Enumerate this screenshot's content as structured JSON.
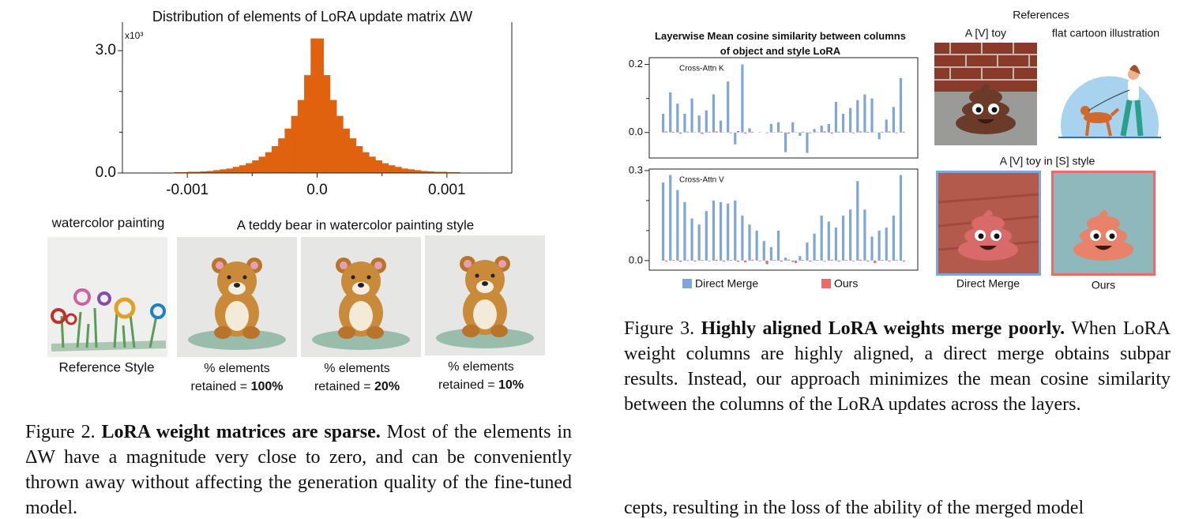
{
  "chart_data": [
    {
      "type": "histogram",
      "title": "Distribution of elements of LoRA update matrix ΔW",
      "y_scale_label": "x10³",
      "bins": [
        -0.0015,
        -0.00145,
        -0.0014,
        -0.00135,
        -0.0013,
        -0.00125,
        -0.0012,
        -0.00115,
        -0.0011,
        -0.00105,
        -0.001,
        -0.00095,
        -0.0009,
        -0.00085,
        -0.0008,
        -0.00075,
        -0.0007,
        -0.00065,
        -0.0006,
        -0.00055,
        -0.0005,
        -0.00045,
        -0.0004,
        -0.00035,
        -0.0003,
        -0.00025,
        -0.0002,
        -0.00015,
        -0.0001,
        -5e-05,
        0,
        5e-05,
        0.0001,
        0.00015,
        0.0002,
        0.00025,
        0.0003,
        0.00035,
        0.0004,
        0.00045,
        0.0005,
        0.00055,
        0.0006,
        0.00065,
        0.0007,
        0.00075,
        0.0008,
        0.00085,
        0.0009,
        0.00095,
        0.001,
        0.00105,
        0.0011,
        0.00115,
        0.0012,
        0.00125,
        0.0013,
        0.00135,
        0.0014,
        0.00145,
        0.0015
      ],
      "values": [
        0,
        0,
        0,
        0,
        0.01,
        0.01,
        0.01,
        0.01,
        0.02,
        0.02,
        0.03,
        0.03,
        0.04,
        0.05,
        0.07,
        0.09,
        0.11,
        0.15,
        0.19,
        0.24,
        0.31,
        0.4,
        0.51,
        0.66,
        0.85,
        1.09,
        1.4,
        1.79,
        2.4,
        3.3,
        3.3,
        2.4,
        1.79,
        1.4,
        1.09,
        0.85,
        0.66,
        0.51,
        0.4,
        0.31,
        0.24,
        0.19,
        0.15,
        0.11,
        0.09,
        0.07,
        0.05,
        0.04,
        0.03,
        0.03,
        0.02,
        0.02,
        0.01,
        0.01,
        0.01,
        0.01,
        0,
        0,
        0,
        0
      ],
      "color": "#e0620f",
      "xlim": [
        -0.0015,
        0.0015
      ],
      "xticks": [
        -0.001,
        {
          "value": 0,
          "label": "0.0"
        },
        0.001
      ],
      "xticks_minor": [
        -0.0005,
        0.0005
      ],
      "ylim": [
        0,
        3.7
      ],
      "yticks": [
        {
          "value": 0,
          "label": "0.0"
        },
        {
          "value": 3,
          "label": "3.0"
        }
      ],
      "yticks_minor": [
        1,
        2
      ]
    },
    {
      "type": "bar",
      "title": "Layerwise Mean cosine similarity between columns of object and style LoRA",
      "subtitle": "Cross-Attn K",
      "ylim": [
        -0.075,
        0.22
      ],
      "yticks": [
        {
          "value": 0,
          "label": "0.0"
        },
        0.2
      ],
      "yticks_minor": [
        0.1
      ],
      "series": [
        {
          "name": "Direct Merge",
          "color": "#7ea6d6",
          "values": [
            0.055,
            0.118,
            0.085,
            0.055,
            0.1,
            0.05,
            0.065,
            0.112,
            0.035,
            0.15,
            -0.035,
            0.2,
            0.012,
            0,
            0,
            0.025,
            0.03,
            -0.058,
            0.03,
            -0.01,
            -0.06,
            0.01,
            0.02,
            0.025,
            0.09,
            0.055,
            0.072,
            0.095,
            0.112,
            0.1,
            -0.02,
            0.038,
            0.075,
            0.16
          ]
        },
        {
          "name": "Ours",
          "color": "#ec6b68",
          "values": [
            0.003,
            0.002,
            -0.003,
            0.002,
            0.001,
            -0.004,
            0.002,
            0.003,
            0.001,
            -0.002,
            0.004,
            -0.003,
            0.002,
            0.001,
            -0.002,
            0.001,
            0.002,
            -0.003,
            0.001,
            0.002,
            -0.002,
            0.001,
            0.003,
            -0.003,
            0.002,
            0.001,
            -0.002,
            0.003,
            0.002,
            -0.001,
            0.002,
            0.003,
            -0.002,
            0.002
          ]
        }
      ]
    },
    {
      "type": "bar",
      "subtitle": "Cross-Attn V",
      "ylim": [
        -0.032,
        0.305
      ],
      "yticks": [
        {
          "value": 0,
          "label": "0.0"
        },
        0.3
      ],
      "yticks_minor": [
        0.1,
        0.2
      ],
      "series": [
        {
          "color": "#7ea6d6",
          "values": [
            0.26,
            0.285,
            0.235,
            0.195,
            0.14,
            0.12,
            0.165,
            0.2,
            0.195,
            0.19,
            0.2,
            0.15,
            0.12,
            0.1,
            0.065,
            0.045,
            0.1,
            0.01,
            -0.005,
            0.015,
            0.06,
            0.09,
            0.15,
            0.13,
            0.11,
            0.15,
            0.17,
            0.265,
            0.17,
            0.08,
            0.1,
            0.11,
            0.15,
            0.285
          ]
        },
        {
          "color": "#ec6b68",
          "values": [
            -0.003,
            0.002,
            -0.004,
            0.002,
            -0.003,
            0.002,
            -0.002,
            0.003,
            -0.003,
            0.002,
            -0.004,
            -0.006,
            0.003,
            -0.002,
            -0.012,
            0.002,
            -0.003,
            0.003,
            -0.008,
            0.002,
            -0.003,
            0.002,
            -0.002,
            0.003,
            -0.003,
            0.002,
            -0.002,
            0.003,
            -0.003,
            -0.008,
            0.002,
            -0.003,
            0.002,
            -0.003
          ]
        }
      ]
    }
  ],
  "figure2": {
    "reference_title": "watercolor painting",
    "prompt": "A teddy bear in watercolor painting style",
    "reference_label": "Reference Style",
    "panels": [
      {
        "line1": "% elements",
        "line2": "retained = ",
        "amount": "100%"
      },
      {
        "line1": "% elements",
        "line2": "retained = ",
        "amount": "20%"
      },
      {
        "line1": "% elements",
        "line2": "retained = ",
        "amount": "10%"
      }
    ],
    "caption": {
      "label": "Figure 2.",
      "title": "LoRA weight matrices are sparse.",
      "text": "Most of the elements in ΔW have a magnitude very close to zero, and can be conveniently thrown away without affecting the generation quality of the fine-tuned model."
    }
  },
  "figure3": {
    "references": "References",
    "object_prompt": "A [V] toy",
    "style_prompt": "flat cartoon illustration",
    "combined_prompt": "A [V] toy in [S] style",
    "direct_label": "Direct Merge",
    "ours_label": "Ours",
    "caption": {
      "label": "Figure 3.",
      "title": "Highly aligned LoRA weights merge poorly.",
      "text": "When LoRA weight columns are highly aligned, a direct merge obtains subpar results. Instead, our approach minimizes the mean cosine similarity between the columns of the LoRA updates across the layers."
    }
  },
  "body_text": "cepts, resulting in the loss of the ability of the merged model"
}
